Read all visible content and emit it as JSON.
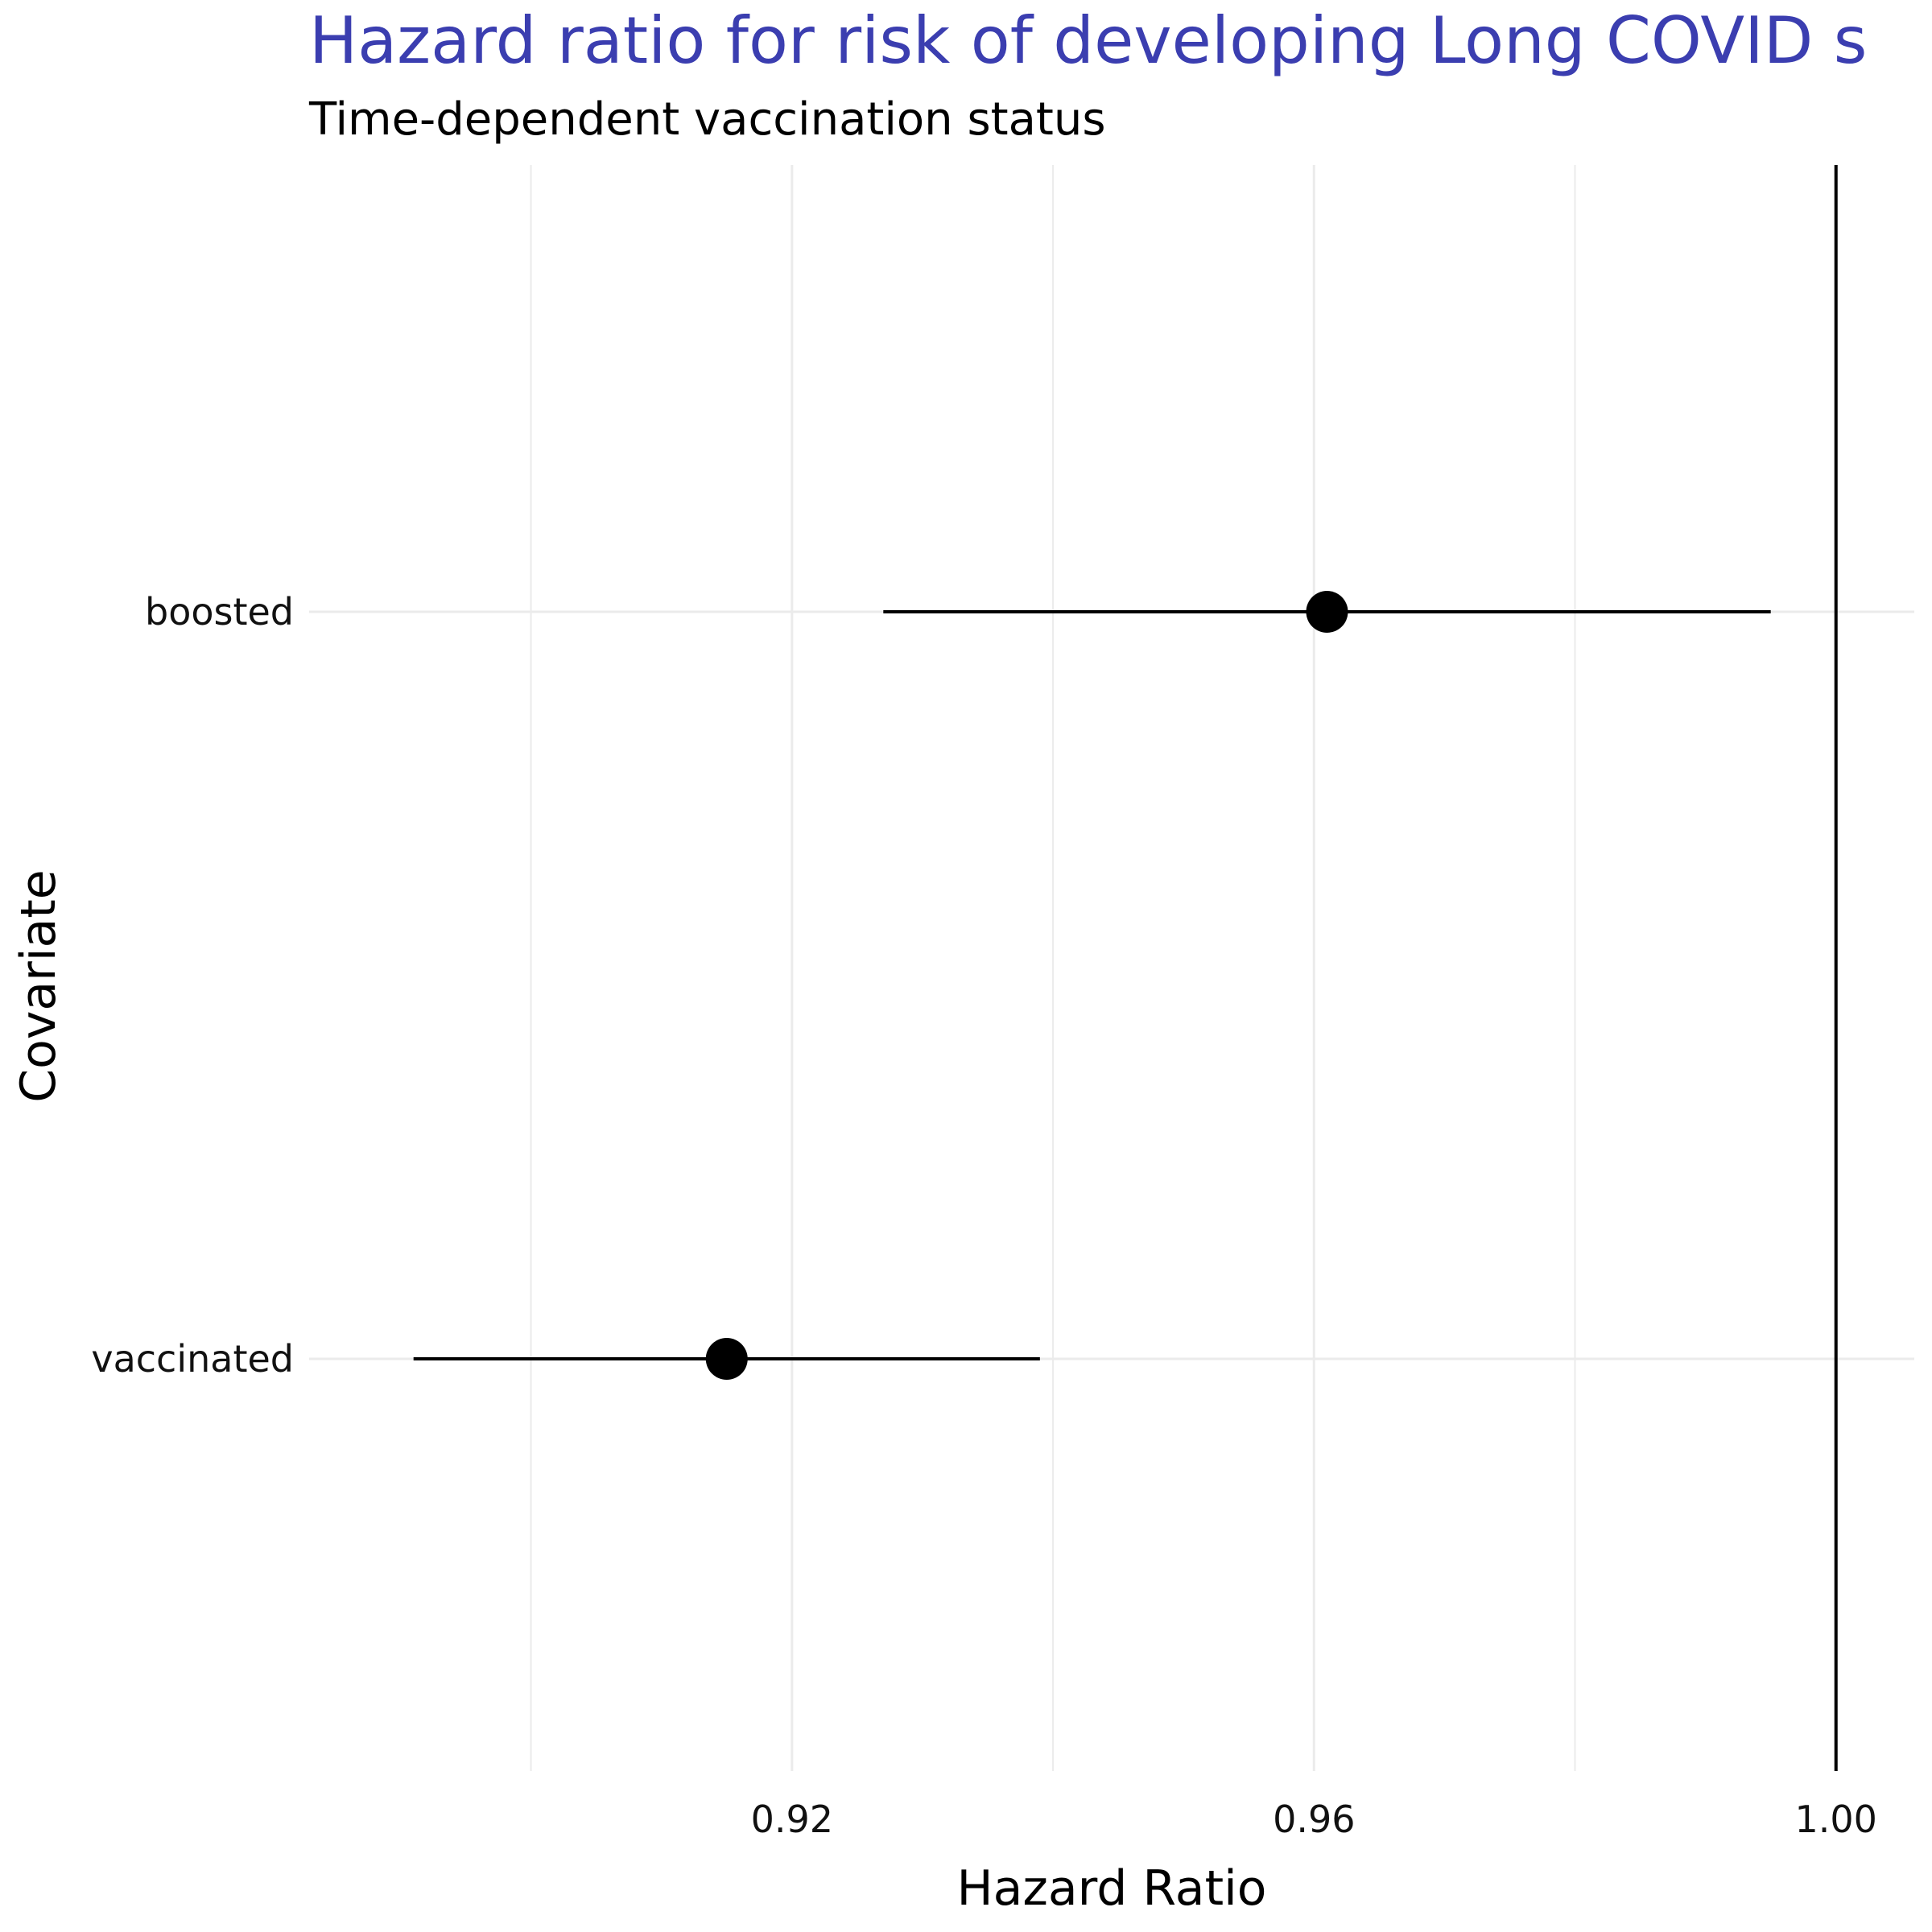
{
  "colors": {
    "title": "#3b3eb0",
    "grid": "#ebebeb",
    "marks": "#000000",
    "background": "#ffffff"
  },
  "chart_data": {
    "type": "forest",
    "title": "Hazard ratio for risk of developing Long COVID s",
    "subtitle": "Time-dependent vaccination status",
    "xlabel": "Hazard Ratio",
    "ylabel": "Covariate",
    "xlim": [
      0.883,
      1.006
    ],
    "x_ticks": [
      0.92,
      0.96,
      1.0
    ],
    "x_tick_labels": [
      "0.92",
      "0.96",
      "1.00"
    ],
    "x_minor_ticks": [
      0.9,
      0.94,
      0.98
    ],
    "reference_line": 1.0,
    "grid": true,
    "legend": "none",
    "categories": [
      "boosted",
      "vaccinated"
    ],
    "series": [
      {
        "points": [
          {
            "label": "boosted",
            "estimate": 0.961,
            "lower": 0.927,
            "upper": 0.995
          },
          {
            "label": "vaccinated",
            "estimate": 0.915,
            "lower": 0.891,
            "upper": 0.939
          }
        ]
      }
    ]
  }
}
